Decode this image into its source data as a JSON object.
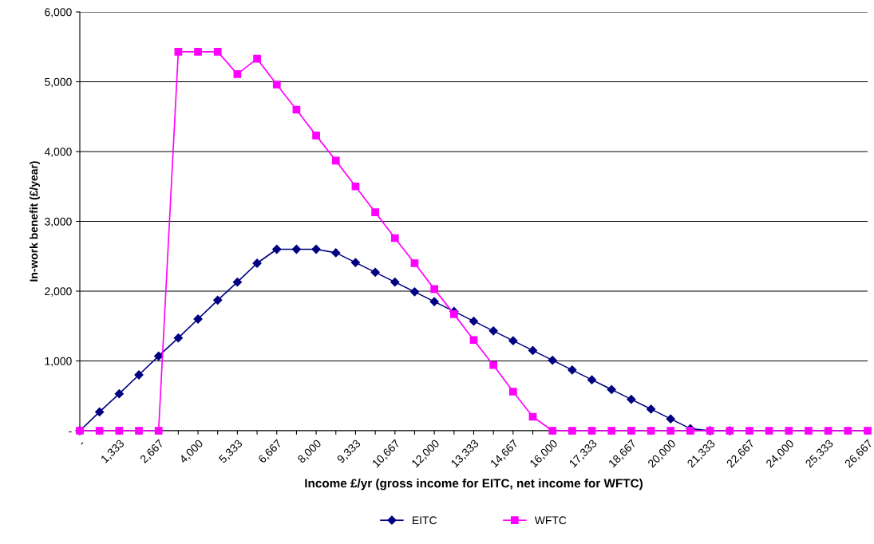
{
  "chart_data": {
    "type": "line",
    "xlabel": "Income £/yr (gross income for EITC, net income for WFTC)",
    "ylabel": "In-work benefit (£/year)",
    "categories": [
      "-",
      null,
      "1,333",
      null,
      "2,667",
      null,
      "4,000",
      null,
      "5,333",
      null,
      "6,667",
      null,
      "8,000",
      null,
      "9,333",
      null,
      "10,667",
      null,
      "12,000",
      null,
      "13,333",
      null,
      "14,667",
      null,
      "16,000",
      null,
      "17,333",
      null,
      "18,667",
      null,
      "20,000",
      null,
      "21,333",
      null,
      "22,667",
      null,
      "24,000",
      null,
      "25,333",
      null,
      "26,667"
    ],
    "series": [
      {
        "name": "EITC",
        "color": "#000080",
        "marker": "diamond",
        "values": [
          0,
          270,
          530,
          800,
          1070,
          1330,
          1600,
          1870,
          2130,
          2400,
          2600,
          2600,
          2600,
          2550,
          2410,
          2270,
          2130,
          1990,
          1850,
          1710,
          1570,
          1430,
          1290,
          1150,
          1010,
          870,
          730,
          590,
          450,
          310,
          170,
          30,
          0,
          0,
          null,
          null,
          null,
          null,
          null,
          null,
          null
        ]
      },
      {
        "name": "WFTC",
        "color": "#ff00ff",
        "marker": "square",
        "values": [
          0,
          0,
          0,
          0,
          0,
          5430,
          5430,
          5430,
          5110,
          5330,
          4960,
          4600,
          4230,
          3870,
          3500,
          3130,
          2760,
          2400,
          2030,
          1670,
          1300,
          940,
          560,
          200,
          0,
          0,
          0,
          0,
          0,
          0,
          0,
          0,
          0,
          0,
          0,
          0,
          0,
          0,
          0,
          0,
          0
        ]
      }
    ],
    "ylim": [
      0,
      6000
    ],
    "yticks": [
      {
        "value": 0,
        "label": "-"
      },
      {
        "value": 1000,
        "label": "1,000"
      },
      {
        "value": 2000,
        "label": "2,000"
      },
      {
        "value": 3000,
        "label": "3,000"
      },
      {
        "value": 4000,
        "label": "4,000"
      },
      {
        "value": 5000,
        "label": "5,000"
      },
      {
        "value": 6000,
        "label": "6,000"
      }
    ],
    "grid": "y",
    "legend": "bottom",
    "line_style": "solid"
  }
}
